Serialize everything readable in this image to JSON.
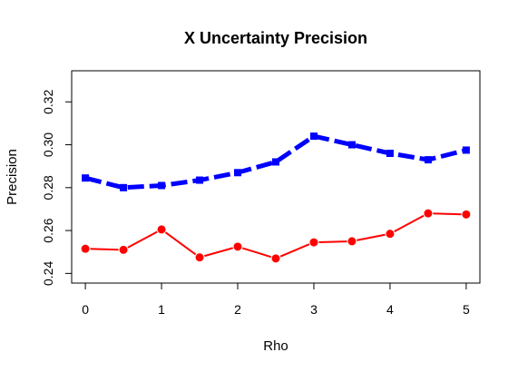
{
  "chart_data": {
    "type": "line",
    "title": "X Uncertainty Precision",
    "xlabel": "Rho",
    "ylabel": "Precision",
    "xlim": [
      -0.18,
      5.18
    ],
    "ylim": [
      0.2355,
      0.3345
    ],
    "x_ticks": [
      0,
      1,
      2,
      3,
      4,
      5
    ],
    "x_tick_labels": [
      "0",
      "1",
      "2",
      "3",
      "4",
      "5"
    ],
    "y_ticks": [
      0.24,
      0.26,
      0.28,
      0.3,
      0.32
    ],
    "y_tick_labels": [
      "0.24",
      "0.26",
      "0.28",
      "0.30",
      "0.32"
    ],
    "grid": false,
    "x": [
      0,
      0.5,
      1,
      1.5,
      2,
      2.5,
      3,
      3.5,
      4,
      4.5,
      5
    ],
    "series": [
      {
        "values": [
          0.2845,
          0.28,
          0.281,
          0.2835,
          0.287,
          0.292,
          0.304,
          0.3,
          0.296,
          0.293,
          0.2975
        ],
        "color": "#0000ff",
        "marker": "square",
        "line_style": "dashed-thick"
      },
      {
        "values": [
          0.2515,
          0.251,
          0.2605,
          0.2475,
          0.2525,
          0.247,
          0.2545,
          0.255,
          0.2585,
          0.268,
          0.2675
        ],
        "color": "#ff0000",
        "marker": "circle",
        "line_style": "solid"
      }
    ]
  }
}
